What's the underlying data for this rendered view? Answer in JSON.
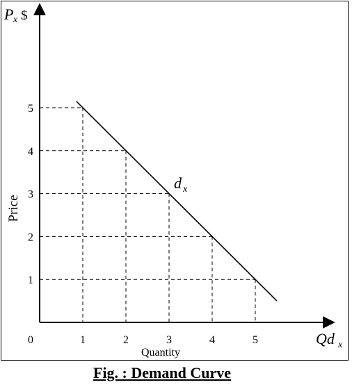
{
  "chart_data": {
    "type": "line",
    "y_axis_label": {
      "symbol": "P",
      "subscript": "x",
      "unit": "$"
    },
    "x_axis_label": {
      "symbol": "Qd",
      "subscript": "x"
    },
    "ylabel": "Price",
    "xlabel": "Quantity",
    "curve_label": {
      "symbol": "d",
      "subscript": "x"
    },
    "origin_label": "0",
    "x_ticks": [
      1,
      2,
      3,
      4,
      5
    ],
    "y_ticks": [
      1,
      2,
      3,
      4,
      5
    ],
    "xlim": [
      0,
      6.6
    ],
    "ylim": [
      0,
      7.5
    ],
    "series": [
      {
        "x": [
          1,
          2,
          3,
          4,
          5
        ],
        "y": [
          5,
          4,
          3,
          2,
          1
        ]
      }
    ],
    "line_extent": {
      "x": [
        0.85,
        5.5
      ],
      "y": [
        5.15,
        0.5
      ]
    },
    "dashed_guides": true
  },
  "caption": "Fig. : Demand Curve"
}
